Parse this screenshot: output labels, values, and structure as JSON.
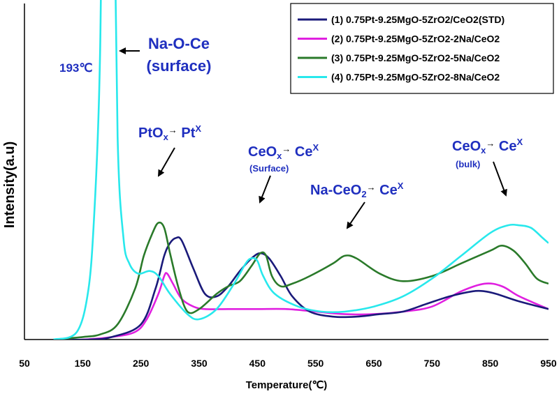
{
  "chart_data": {
    "type": "line",
    "xlabel": "Temperature(℃)",
    "ylabel": "Intensity(a.u)",
    "xlim": [
      50,
      950
    ],
    "x_ticks": [
      "50",
      "150",
      "250",
      "350",
      "450",
      "550",
      "650",
      "750",
      "850",
      "950"
    ],
    "legend_position": "top-right",
    "grid": false,
    "series": [
      {
        "name": "(1) 0.75Pt-9.25MgO-5ZrO2/CeO2(STD)",
        "color": "#1a1a7a",
        "x": [
          100,
          160,
          200,
          250,
          275,
          290,
          300,
          310,
          320,
          340,
          360,
          380,
          400,
          420,
          440,
          455,
          470,
          490,
          510,
          540,
          580,
          620,
          660,
          700,
          740,
          780,
          820,
          840,
          860,
          900,
          950
        ],
        "y": [
          0.0,
          0.0,
          0.01,
          0.06,
          0.2,
          0.33,
          0.38,
          0.4,
          0.39,
          0.28,
          0.18,
          0.17,
          0.21,
          0.27,
          0.32,
          0.34,
          0.32,
          0.25,
          0.17,
          0.11,
          0.09,
          0.09,
          0.1,
          0.11,
          0.14,
          0.17,
          0.19,
          0.19,
          0.18,
          0.15,
          0.12
        ]
      },
      {
        "name": "(2) 0.75Pt-9.25MgO-5ZrO2-2Na/CeO2",
        "color": "#e020e0",
        "x": [
          100,
          150,
          200,
          240,
          260,
          280,
          290,
          295,
          305,
          320,
          340,
          360,
          400,
          450,
          500,
          550,
          600,
          650,
          700,
          750,
          800,
          840,
          870,
          900,
          950
        ],
        "y": [
          0.0,
          0.0,
          0.01,
          0.03,
          0.08,
          0.18,
          0.25,
          0.26,
          0.22,
          0.16,
          0.13,
          0.12,
          0.12,
          0.12,
          0.12,
          0.11,
          0.1,
          0.1,
          0.11,
          0.13,
          0.19,
          0.22,
          0.21,
          0.17,
          0.12
        ]
      },
      {
        "name": "(3) 0.75Pt-9.25MgO-5ZrO2-5Na/CeO2",
        "color": "#2a7a2a",
        "x": [
          100,
          150,
          180,
          210,
          240,
          255,
          270,
          280,
          290,
          300,
          315,
          330,
          350,
          380,
          400,
          420,
          440,
          455,
          465,
          475,
          490,
          510,
          540,
          580,
          600,
          620,
          660,
          700,
          750,
          800,
          850,
          870,
          890,
          910,
          930,
          950
        ],
        "y": [
          0.0,
          0.01,
          0.02,
          0.06,
          0.2,
          0.33,
          0.42,
          0.46,
          0.44,
          0.34,
          0.2,
          0.11,
          0.12,
          0.18,
          0.21,
          0.23,
          0.29,
          0.34,
          0.33,
          0.25,
          0.21,
          0.22,
          0.25,
          0.3,
          0.33,
          0.32,
          0.26,
          0.23,
          0.25,
          0.3,
          0.35,
          0.37,
          0.35,
          0.3,
          0.24,
          0.22
        ]
      },
      {
        "name": "(4) 0.75Pt-9.25MgO-5ZrO2-8Na/CeO2",
        "color": "#28e8ec",
        "x": [
          100,
          140,
          160,
          170,
          178,
          182,
          188,
          196,
          203,
          210,
          220,
          230,
          245,
          265,
          280,
          300,
          330,
          350,
          380,
          410,
          430,
          440,
          450,
          460,
          480,
          520,
          560,
          600,
          650,
          700,
          750,
          800,
          850,
          880,
          900,
          920,
          940,
          950
        ],
        "y": [
          0.0,
          0.03,
          0.2,
          0.5,
          0.95,
          1.5,
          3.0,
          3.0,
          2.0,
          0.8,
          0.4,
          0.3,
          0.26,
          0.27,
          0.25,
          0.18,
          0.1,
          0.08,
          0.12,
          0.22,
          0.3,
          0.32,
          0.31,
          0.25,
          0.18,
          0.13,
          0.11,
          0.11,
          0.13,
          0.17,
          0.24,
          0.33,
          0.42,
          0.45,
          0.45,
          0.44,
          0.4,
          0.38
        ]
      }
    ],
    "annotations": {
      "na_o_ce_line1": "Na-O-Ce",
      "na_o_ce_line2": "(surface)",
      "temp_label": "193℃",
      "pt_a": "PtO",
      "pt_a_sub": "x",
      "pt_arrow": "→",
      "pt_b": " Pt",
      "pt_b_sup": "X",
      "ce_surf_a": "CeO",
      "ce_surf_a_sub": "x",
      "ce_surf_arrow": "→",
      "ce_surf_b": " Ce",
      "ce_surf_b_sup": "X",
      "ce_surf_note": "(Surface)",
      "na_ce_a": "Na-CeO",
      "na_ce_a_sub": "2",
      "na_ce_arrow": "→",
      "na_ce_b": " Ce",
      "na_ce_b_sup": "X",
      "ce_bulk_a": "CeO",
      "ce_bulk_a_sub": "x",
      "ce_bulk_arrow": "→",
      "ce_bulk_b": " Ce",
      "ce_bulk_b_sup": "X",
      "ce_bulk_note": "(bulk)"
    }
  }
}
